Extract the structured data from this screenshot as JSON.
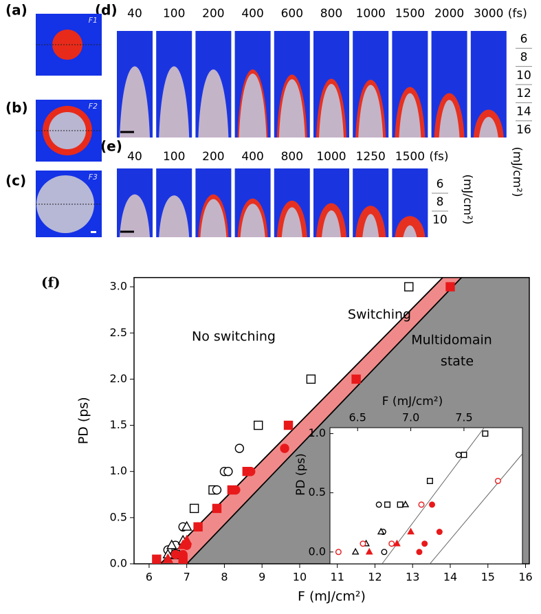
{
  "figure_panels": {
    "a": {
      "label": "(a)",
      "tag": "F1"
    },
    "b": {
      "label": "(b)",
      "tag": "F2"
    },
    "c": {
      "label": "(c)",
      "tag": "F3"
    },
    "d": {
      "label": "(d)",
      "times": [
        "40",
        "100",
        "200",
        "400",
        "600",
        "800",
        "1000",
        "1500",
        "2000",
        "3000"
      ],
      "unit": "(fs)",
      "fluences": [
        "6",
        "8",
        "10",
        "12",
        "14",
        "16"
      ],
      "fluence_unit": "(mJ/cm²)"
    },
    "e": {
      "label": "(e)",
      "times": [
        "40",
        "100",
        "200",
        "400",
        "800",
        "1000",
        "1250",
        "1500"
      ],
      "unit": "(fs)",
      "fluences": [
        "6",
        "8",
        "10"
      ],
      "fluence_unit": "(mJ/cm²)"
    }
  },
  "chart_data": {
    "type": "scatter",
    "panel_label": "(f)",
    "xlabel": "F (mJ/cm²)",
    "ylabel": "PD (ps)",
    "xlim": [
      5.6,
      16.1
    ],
    "ylim": [
      0,
      3.1
    ],
    "xticks": [
      6,
      7,
      8,
      9,
      10,
      11,
      12,
      13,
      14,
      15,
      16
    ],
    "yticks": [
      {
        "value": 0,
        "label": "0.0"
      },
      0.5,
      {
        "value": 1,
        "label": "1.0"
      },
      1.5,
      {
        "value": 2,
        "label": "2.0"
      },
      2.5,
      {
        "value": 3,
        "label": "3.0"
      }
    ],
    "annotations": [
      "No switching",
      "Switching",
      "Multidomain",
      "state"
    ],
    "boundaries": [
      {
        "x": [
          6.3,
          13.8
        ],
        "y": [
          0,
          3.1
        ]
      },
      {
        "x": [
          7.0,
          14.3
        ],
        "y": [
          0,
          3.1
        ]
      }
    ],
    "region_colors": [
      "#ffffff",
      "#f08a8a",
      "#8f8f8f"
    ],
    "series": [
      {
        "marker": "square",
        "filled": false,
        "color": "#000000",
        "x": [
          6.7,
          7.2,
          7.7,
          8.9,
          10.3,
          12.9
        ],
        "y": [
          0.1,
          0.6,
          0.8,
          1.5,
          2.0,
          3.0
        ]
      },
      {
        "marker": "circle",
        "filled": false,
        "color": "#000000",
        "x": [
          6.5,
          6.7,
          6.9,
          7.8,
          8.0,
          8.1,
          8.4
        ],
        "y": [
          0.15,
          0.2,
          0.4,
          0.8,
          1.0,
          1.0,
          1.25
        ]
      },
      {
        "marker": "triangle",
        "filled": false,
        "color": "#000000",
        "x": [
          6.5,
          6.6,
          6.9,
          7.0
        ],
        "y": [
          0.1,
          0.2,
          0.25,
          0.4
        ]
      },
      {
        "marker": "square",
        "filled": true,
        "color": "#e8191b",
        "x": [
          6.2,
          6.9,
          7.3,
          7.8,
          8.2,
          8.6,
          9.7,
          11.5,
          14.0
        ],
        "y": [
          0.05,
          0.05,
          0.4,
          0.6,
          0.8,
          1.0,
          1.5,
          2.0,
          3.0
        ]
      },
      {
        "marker": "circle",
        "filled": true,
        "color": "#e8191b",
        "x": [
          6.7,
          6.9,
          7.0,
          7.3,
          8.3,
          8.7,
          9.6
        ],
        "y": [
          0.1,
          0.1,
          0.2,
          0.4,
          0.8,
          1.0,
          1.25
        ]
      },
      {
        "marker": "triangle",
        "filled": true,
        "color": "#e8191b",
        "x": [
          6.5,
          6.9,
          7.0
        ],
        "y": [
          0.05,
          0.2,
          0.25
        ]
      }
    ],
    "inset": {
      "xlabel": "F (mJ/cm²)",
      "ylabel": "PD (ps)",
      "xlim": [
        6.24,
        8.05
      ],
      "ylim": [
        -0.1,
        1.05
      ],
      "xticks": [
        6.5,
        {
          "value": 7,
          "label": "7.0"
        },
        7.5
      ],
      "yticks": [
        {
          "value": 0,
          "label": "0.0"
        },
        0.5,
        {
          "value": 1,
          "label": "1.0"
        }
      ],
      "lines": [
        {
          "x": [
            6.73,
            7.69
          ],
          "y": [
            -0.1,
            1.05
          ]
        },
        {
          "x": [
            7.18,
            8.05
          ],
          "y": [
            -0.1,
            0.83
          ]
        }
      ],
      "series": [
        {
          "marker": "square",
          "filled": false,
          "color": "#000000",
          "x": [
            6.78,
            6.9,
            7.18,
            7.5,
            7.7
          ],
          "y": [
            0.4,
            0.4,
            0.6,
            0.82,
            1.0
          ]
        },
        {
          "marker": "circle",
          "filled": false,
          "color": "#000000",
          "x": [
            6.75,
            6.74,
            6.7,
            7.45
          ],
          "y": [
            0.0,
            0.17,
            0.4,
            0.82
          ]
        },
        {
          "marker": "triangle",
          "filled": false,
          "color": "#000000",
          "x": [
            6.48,
            6.58,
            6.72,
            6.95
          ],
          "y": [
            0.0,
            0.07,
            0.17,
            0.4
          ]
        },
        {
          "marker": "circle",
          "filled": false,
          "color": "#e8191b",
          "x": [
            6.32,
            6.55,
            6.82,
            7.1,
            7.82
          ],
          "y": [
            0.0,
            0.07,
            0.07,
            0.4,
            0.6
          ]
        },
        {
          "marker": "circle",
          "filled": true,
          "color": "#e8191b",
          "x": [
            7.08,
            7.13,
            7.27,
            7.2
          ],
          "y": [
            0.0,
            0.07,
            0.17,
            0.4
          ]
        },
        {
          "marker": "triangle",
          "filled": true,
          "color": "#e8191b",
          "x": [
            6.61,
            6.87,
            7.0
          ],
          "y": [
            0.0,
            0.07,
            0.17
          ]
        }
      ]
    }
  }
}
